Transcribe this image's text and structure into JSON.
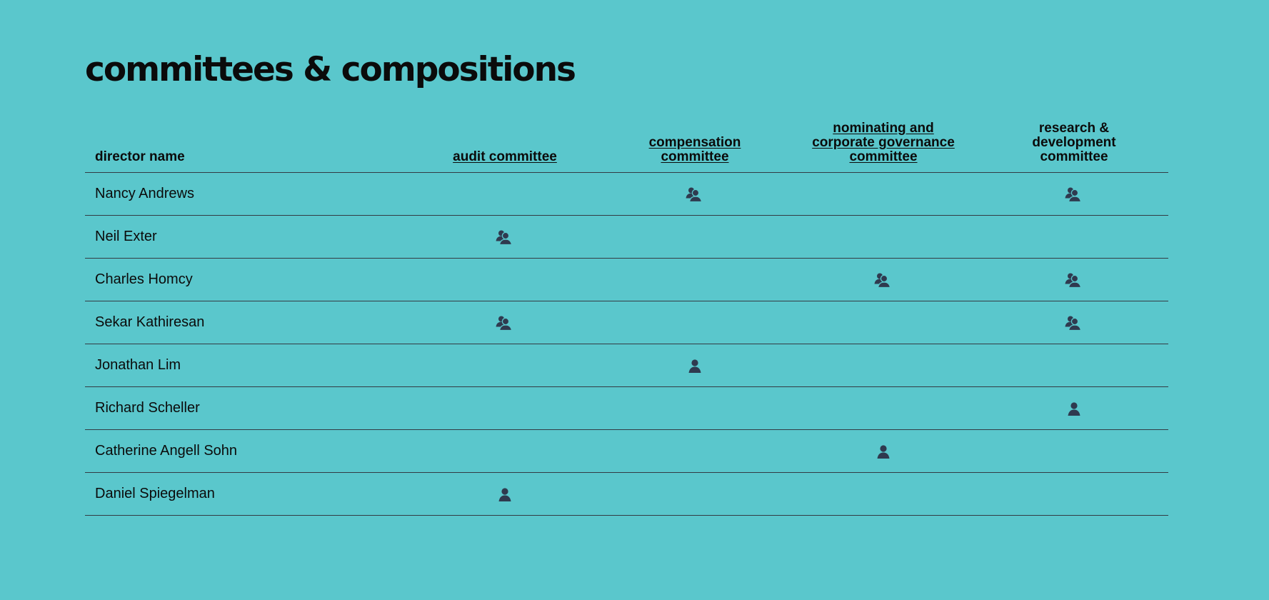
{
  "title": "committees & compositions",
  "icon_color": "#2f3a4f",
  "columns": {
    "director": "director name",
    "audit": "audit committee",
    "compensation_l1": "compensation",
    "compensation_l2": "committee",
    "nominating_l1": "nominating and",
    "nominating_l2": "corporate governance",
    "nominating_l3": "committee",
    "rd_l1": "research &",
    "rd_l2": "development",
    "rd_l3": "committee"
  },
  "legend": {
    "member_icon": "member-icon",
    "chair_icon": "chair-icon"
  },
  "directors": [
    {
      "name": "Nancy Andrews",
      "audit": "",
      "compensation": "chair",
      "nominating": "",
      "rd": "chair"
    },
    {
      "name": "Neil Exter",
      "audit": "chair",
      "compensation": "",
      "nominating": "",
      "rd": ""
    },
    {
      "name": "Charles Homcy",
      "audit": "",
      "compensation": "",
      "nominating": "chair",
      "rd": "chair"
    },
    {
      "name": "Sekar Kathiresan",
      "audit": "chair",
      "compensation": "",
      "nominating": "",
      "rd": "chair"
    },
    {
      "name": "Jonathan Lim",
      "audit": "",
      "compensation": "member",
      "nominating": "",
      "rd": ""
    },
    {
      "name": "Richard Scheller",
      "audit": "",
      "compensation": "",
      "nominating": "",
      "rd": "member"
    },
    {
      "name": "Catherine Angell Sohn",
      "audit": "",
      "compensation": "",
      "nominating": "member",
      "rd": ""
    },
    {
      "name": "Daniel Spiegelman",
      "audit": "member",
      "compensation": "",
      "nominating": "",
      "rd": ""
    }
  ]
}
